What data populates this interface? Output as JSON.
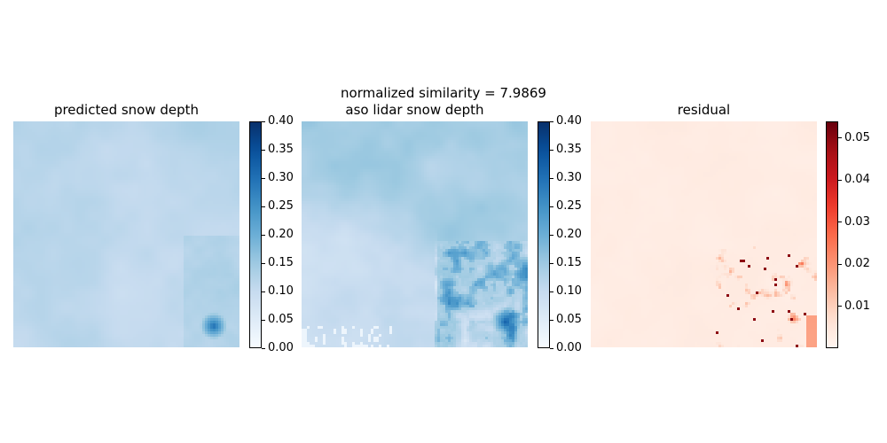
{
  "suptitle": "normalized similarity = 7.9869",
  "chart_data": [
    {
      "type": "heatmap",
      "title": "predicted snow depth",
      "colormap": "Blues",
      "colorbar": {
        "vmin": 0.0,
        "vmax": 0.4,
        "ticks": [
          "0.00",
          "0.05",
          "0.10",
          "0.15",
          "0.20",
          "0.25",
          "0.30",
          "0.35",
          "0.40"
        ]
      },
      "axes": "off",
      "value_range_shown": [
        0.05,
        0.35
      ]
    },
    {
      "type": "heatmap",
      "title": "aso lidar snow depth",
      "colormap": "Blues",
      "colorbar": {
        "vmin": 0.0,
        "vmax": 0.4,
        "ticks": [
          "0.00",
          "0.05",
          "0.10",
          "0.15",
          "0.20",
          "0.25",
          "0.30",
          "0.35",
          "0.40"
        ]
      },
      "axes": "off",
      "value_range_shown": [
        0.0,
        0.4
      ]
    },
    {
      "type": "heatmap",
      "title": "residual",
      "colormap": "Reds",
      "colorbar": {
        "vmin": 0.0,
        "vmax": 0.054,
        "ticks": [
          "0.01",
          "0.02",
          "0.03",
          "0.04",
          "0.05"
        ]
      },
      "axes": "off",
      "value_range_shown": [
        0.0,
        0.054
      ]
    }
  ]
}
